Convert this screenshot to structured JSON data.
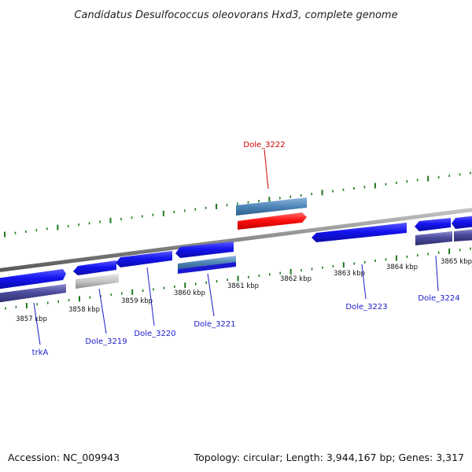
{
  "title": "Candidatus Desulfococcus oleovorans Hxd3, complete genome",
  "footer": {
    "accession": "Accession: NC_009943",
    "summary": "Topology: circular; Length: 3,944,167 bp; Genes: 3,317"
  },
  "colors": {
    "backbone": "#8a8a8a",
    "tick": "#1f7a1f",
    "gene_forward": "#1010ee",
    "gene_reverse": "#4a4a9a",
    "gene_highlight": "#ff1a1a",
    "gene_steel": "#4f86b8",
    "gene_grey": "#c8c8c8",
    "label_default": "#1a1acc",
    "label_highlight": "#cc0000"
  },
  "kbp_labels": [
    "3857 kbp",
    "3858 kbp",
    "3859 kbp",
    "3860 kbp",
    "3861 kbp",
    "3862 kbp",
    "3863 kbp",
    "3864 kbp",
    "3865 kbp"
  ],
  "genes": [
    {
      "label": "trkA",
      "highlight": false
    },
    {
      "label": "Dole_3219",
      "highlight": false
    },
    {
      "label": "Dole_3220",
      "highlight": false
    },
    {
      "label": "Dole_3221",
      "highlight": false
    },
    {
      "label": "Dole_3222",
      "highlight": true
    },
    {
      "label": "Dole_3223",
      "highlight": false
    },
    {
      "label": "Dole_3224",
      "highlight": false
    }
  ]
}
